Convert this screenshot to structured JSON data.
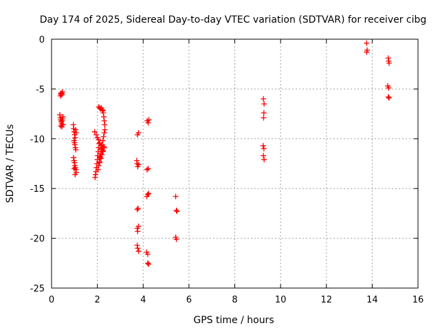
{
  "chart_data": {
    "type": "scatter",
    "title": "Day 174 of 2025, Sidereal Day-to-day VTEC variation (SDTVAR) for receiver cibg",
    "xlabel": "GPS time / hours",
    "ylabel": "SDTVAR / TECUs",
    "xlim": [
      0,
      16
    ],
    "ylim": [
      -25,
      0
    ],
    "xticks": [
      0,
      2,
      4,
      6,
      8,
      10,
      12,
      14,
      16
    ],
    "yticks": [
      0,
      -5,
      -10,
      -15,
      -20,
      -25
    ],
    "xtick_labels": [
      "0",
      "2",
      "4",
      "6",
      "8",
      "10",
      "12",
      "14",
      "16"
    ],
    "ytick_labels": [
      "0",
      "-5",
      "-10",
      "-15",
      "-20",
      "-25"
    ],
    "grid": true,
    "marker": "plus",
    "color": "#ff0000",
    "series": [
      {
        "name": "SDTVAR",
        "points": [
          [
            0.38,
            -5.7
          ],
          [
            0.4,
            -5.5
          ],
          [
            0.42,
            -5.4
          ],
          [
            0.44,
            -5.6
          ],
          [
            0.46,
            -5.5
          ],
          [
            0.48,
            -5.3
          ],
          [
            0.36,
            -7.6
          ],
          [
            0.38,
            -7.9
          ],
          [
            0.4,
            -8.1
          ],
          [
            0.42,
            -8.3
          ],
          [
            0.44,
            -8.5
          ],
          [
            0.46,
            -8.2
          ],
          [
            0.48,
            -8.0
          ],
          [
            0.5,
            -7.8
          ],
          [
            0.4,
            -8.7
          ],
          [
            0.45,
            -8.8
          ],
          [
            0.5,
            -8.6
          ],
          [
            0.95,
            -8.6
          ],
          [
            0.97,
            -9.0
          ],
          [
            0.99,
            -9.3
          ],
          [
            1.01,
            -9.6
          ],
          [
            1.03,
            -9.9
          ],
          [
            1.05,
            -9.1
          ],
          [
            1.07,
            -9.4
          ],
          [
            0.98,
            -10.2
          ],
          [
            1.0,
            -10.4
          ],
          [
            1.02,
            -10.6
          ],
          [
            1.04,
            -10.9
          ],
          [
            1.06,
            -11.1
          ],
          [
            0.96,
            -11.9
          ],
          [
            0.98,
            -12.2
          ],
          [
            1.0,
            -12.4
          ],
          [
            1.02,
            -12.7
          ],
          [
            1.04,
            -12.9
          ],
          [
            1.06,
            -13.1
          ],
          [
            1.08,
            -13.4
          ],
          [
            0.99,
            -13.0
          ],
          [
            1.03,
            -13.6
          ],
          [
            1.88,
            -9.3
          ],
          [
            1.9,
            -13.9
          ],
          [
            1.92,
            -13.6
          ],
          [
            1.94,
            -13.3
          ],
          [
            1.96,
            -12.9
          ],
          [
            1.98,
            -12.5
          ],
          [
            2.0,
            -12.1
          ],
          [
            2.02,
            -11.7
          ],
          [
            2.04,
            -11.3
          ],
          [
            2.06,
            -10.9
          ],
          [
            2.08,
            -10.5
          ],
          [
            1.95,
            -9.6
          ],
          [
            2.0,
            -9.9
          ],
          [
            2.05,
            -10.1
          ],
          [
            2.1,
            -10.4
          ],
          [
            2.15,
            -10.7
          ],
          [
            2.2,
            -11.0
          ],
          [
            2.25,
            -11.2
          ],
          [
            2.3,
            -10.9
          ],
          [
            2.03,
            -13.1
          ],
          [
            2.06,
            -12.7
          ],
          [
            2.09,
            -12.3
          ],
          [
            2.12,
            -11.9
          ],
          [
            2.15,
            -11.5
          ],
          [
            2.18,
            -11.1
          ],
          [
            2.21,
            -10.6
          ],
          [
            2.24,
            -10.2
          ],
          [
            2.27,
            -9.8
          ],
          [
            2.3,
            -9.4
          ],
          [
            2.33,
            -9.1
          ],
          [
            2.06,
            -6.8
          ],
          [
            2.1,
            -6.9
          ],
          [
            2.14,
            -7.0
          ],
          [
            2.18,
            -6.9
          ],
          [
            2.22,
            -7.1
          ],
          [
            2.26,
            -7.4
          ],
          [
            2.28,
            -7.8
          ],
          [
            2.3,
            -8.2
          ],
          [
            2.32,
            -8.6
          ],
          [
            2.25,
            -7.2
          ],
          [
            2.12,
            -11.8
          ],
          [
            2.16,
            -12.0
          ],
          [
            2.2,
            -11.6
          ],
          [
            2.24,
            -11.3
          ],
          [
            2.28,
            -10.8
          ],
          [
            2.1,
            -12.4
          ],
          [
            3.75,
            -9.6
          ],
          [
            3.8,
            -9.4
          ],
          [
            3.72,
            -12.2
          ],
          [
            3.74,
            -12.5
          ],
          [
            3.76,
            -12.8
          ],
          [
            3.8,
            -12.6
          ],
          [
            3.74,
            -17.1
          ],
          [
            3.78,
            -17.0
          ],
          [
            3.74,
            -19.0
          ],
          [
            3.76,
            -19.3
          ],
          [
            3.8,
            -18.8
          ],
          [
            3.74,
            -20.7
          ],
          [
            3.76,
            -21.0
          ],
          [
            3.8,
            -21.3
          ],
          [
            4.18,
            -8.2
          ],
          [
            4.22,
            -8.4
          ],
          [
            4.25,
            -8.1
          ],
          [
            4.17,
            -13.1
          ],
          [
            4.22,
            -13.0
          ],
          [
            4.16,
            -15.8
          ],
          [
            4.2,
            -15.6
          ],
          [
            4.24,
            -15.5
          ],
          [
            4.15,
            -21.4
          ],
          [
            4.2,
            -21.6
          ],
          [
            4.2,
            -22.5
          ],
          [
            4.24,
            -22.6
          ],
          [
            5.42,
            -15.8
          ],
          [
            5.45,
            -17.2
          ],
          [
            5.48,
            -17.3
          ],
          [
            5.42,
            -19.9
          ],
          [
            5.45,
            -20.1
          ],
          [
            9.25,
            -6.0
          ],
          [
            9.28,
            -6.5
          ],
          [
            9.27,
            -7.4
          ],
          [
            9.26,
            -7.9
          ],
          [
            9.24,
            -10.7
          ],
          [
            9.27,
            -11.0
          ],
          [
            9.25,
            -11.7
          ],
          [
            9.28,
            -12.1
          ],
          [
            13.76,
            -0.4
          ],
          [
            13.78,
            -1.1
          ],
          [
            13.76,
            -1.3
          ],
          [
            14.7,
            -1.9
          ],
          [
            14.72,
            -2.2
          ],
          [
            14.74,
            -2.4
          ],
          [
            14.68,
            -4.7
          ],
          [
            14.72,
            -4.9
          ],
          [
            14.7,
            -5.8
          ],
          [
            14.74,
            -5.9
          ]
        ]
      }
    ]
  }
}
